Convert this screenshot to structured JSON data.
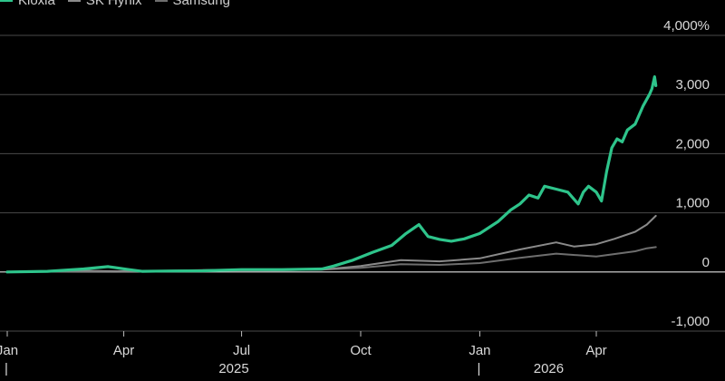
{
  "chart_data": {
    "type": "line",
    "title": "",
    "xlabel": "",
    "ylabel": "",
    "y_unit_suffix": "%",
    "ylim": [
      -1000,
      4000
    ],
    "y_ticks": [
      {
        "value": 4000,
        "label": "4,000%"
      },
      {
        "value": 3000,
        "label": "3,000"
      },
      {
        "value": 2000,
        "label": "2,000"
      },
      {
        "value": 1000,
        "label": "1,000"
      },
      {
        "value": 0,
        "label": "0"
      },
      {
        "value": -1000,
        "label": "-1,000"
      }
    ],
    "x_range": [
      "2025-01-01",
      "2026-05-20"
    ],
    "x_ticks": [
      {
        "date": "2025-01-01",
        "label": "Jan"
      },
      {
        "date": "2025-04-01",
        "label": "Apr"
      },
      {
        "date": "2025-07-01",
        "label": "Jul"
      },
      {
        "date": "2025-10-01",
        "label": "Oct"
      },
      {
        "date": "2026-01-01",
        "label": "Jan"
      },
      {
        "date": "2026-04-01",
        "label": "Apr"
      }
    ],
    "year_labels": [
      {
        "date": "2025-01-01",
        "label": "2025",
        "marker": "|"
      },
      {
        "date": "2026-01-01",
        "label": "2026",
        "marker": "|"
      }
    ],
    "grid": true,
    "legend": "top-left",
    "series": [
      {
        "name": "Kioxia",
        "color": "#2ec48b",
        "points": [
          [
            "2025-01-01",
            0
          ],
          [
            "2025-02-01",
            10
          ],
          [
            "2025-03-01",
            50
          ],
          [
            "2025-03-20",
            90
          ],
          [
            "2025-04-05",
            40
          ],
          [
            "2025-04-15",
            10
          ],
          [
            "2025-05-01",
            15
          ],
          [
            "2025-06-01",
            20
          ],
          [
            "2025-07-01",
            40
          ],
          [
            "2025-08-01",
            40
          ],
          [
            "2025-09-01",
            50
          ],
          [
            "2025-09-10",
            100
          ],
          [
            "2025-09-25",
            200
          ],
          [
            "2025-10-10",
            330
          ],
          [
            "2025-10-25",
            450
          ],
          [
            "2025-11-05",
            650
          ],
          [
            "2025-11-15",
            800
          ],
          [
            "2025-11-22",
            600
          ],
          [
            "2025-12-01",
            550
          ],
          [
            "2025-12-10",
            520
          ],
          [
            "2025-12-20",
            560
          ],
          [
            "2026-01-01",
            650
          ],
          [
            "2026-01-15",
            850
          ],
          [
            "2026-01-25",
            1050
          ],
          [
            "2026-02-01",
            1150
          ],
          [
            "2026-02-08",
            1300
          ],
          [
            "2026-02-15",
            1250
          ],
          [
            "2026-02-20",
            1450
          ],
          [
            "2026-03-01",
            1400
          ],
          [
            "2026-03-10",
            1350
          ],
          [
            "2026-03-18",
            1150
          ],
          [
            "2026-03-22",
            1350
          ],
          [
            "2026-03-26",
            1450
          ],
          [
            "2026-04-01",
            1350
          ],
          [
            "2026-04-05",
            1200
          ],
          [
            "2026-04-09",
            1700
          ],
          [
            "2026-04-13",
            2100
          ],
          [
            "2026-04-17",
            2250
          ],
          [
            "2026-04-21",
            2200
          ],
          [
            "2026-04-25",
            2400
          ],
          [
            "2026-05-01",
            2500
          ],
          [
            "2026-05-07",
            2800
          ],
          [
            "2026-05-12",
            3000
          ],
          [
            "2026-05-14",
            3100
          ],
          [
            "2026-05-16",
            3300
          ],
          [
            "2026-05-17",
            3150
          ]
        ]
      },
      {
        "name": "SK Hynix",
        "color": "#8a8a8a",
        "points": [
          [
            "2025-01-01",
            0
          ],
          [
            "2025-02-01",
            10
          ],
          [
            "2025-03-01",
            20
          ],
          [
            "2025-04-01",
            10
          ],
          [
            "2025-05-01",
            20
          ],
          [
            "2025-06-01",
            30
          ],
          [
            "2025-07-01",
            40
          ],
          [
            "2025-08-01",
            30
          ],
          [
            "2025-09-01",
            40
          ],
          [
            "2025-10-01",
            100
          ],
          [
            "2025-11-01",
            200
          ],
          [
            "2025-12-01",
            180
          ],
          [
            "2026-01-01",
            230
          ],
          [
            "2026-02-01",
            380
          ],
          [
            "2026-03-01",
            500
          ],
          [
            "2026-03-15",
            430
          ],
          [
            "2026-04-01",
            470
          ],
          [
            "2026-04-15",
            560
          ],
          [
            "2026-05-01",
            680
          ],
          [
            "2026-05-10",
            800
          ],
          [
            "2026-05-17",
            950
          ]
        ]
      },
      {
        "name": "Samsung",
        "color": "#6e6e6e",
        "points": [
          [
            "2025-01-01",
            0
          ],
          [
            "2025-03-01",
            10
          ],
          [
            "2025-05-01",
            15
          ],
          [
            "2025-07-01",
            20
          ],
          [
            "2025-09-01",
            40
          ],
          [
            "2025-10-01",
            70
          ],
          [
            "2025-11-01",
            130
          ],
          [
            "2025-12-01",
            120
          ],
          [
            "2026-01-01",
            150
          ],
          [
            "2026-02-01",
            240
          ],
          [
            "2026-03-01",
            310
          ],
          [
            "2026-04-01",
            260
          ],
          [
            "2026-05-01",
            350
          ],
          [
            "2026-05-10",
            400
          ],
          [
            "2026-05-17",
            420
          ]
        ]
      }
    ]
  }
}
